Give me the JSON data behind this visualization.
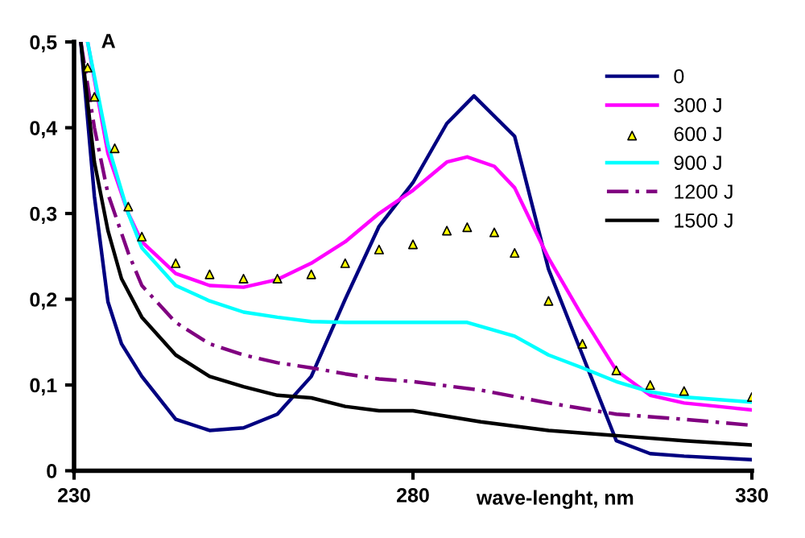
{
  "chart_data": {
    "type": "line",
    "xlabel": "wave-lenght, nm",
    "annotations": [
      "A"
    ],
    "xlim": [
      230,
      330
    ],
    "xticks": [
      230,
      280,
      330
    ],
    "ylim": [
      0,
      0.5
    ],
    "yticks": [
      {
        "value": 0,
        "label": "0"
      },
      {
        "value": 0.1,
        "label": "0,1"
      },
      {
        "value": 0.2,
        "label": "0,2"
      },
      {
        "value": 0.3,
        "label": "0,3"
      },
      {
        "value": 0.4,
        "label": "0,4"
      },
      {
        "value": 0.5,
        "label": "0,5"
      }
    ],
    "grid": false,
    "legend": "top right",
    "series": [
      {
        "name": "0",
        "color": "#000080",
        "x": [
          231,
          233,
          235,
          237,
          240,
          245,
          250,
          255,
          260,
          265,
          270,
          275,
          280,
          285,
          289,
          295,
          300,
          305,
          310,
          315,
          320,
          330
        ],
        "values": [
          0.5,
          0.32,
          0.197,
          0.148,
          0.11,
          0.06,
          0.047,
          0.05,
          0.066,
          0.11,
          0.2,
          0.285,
          0.336,
          0.405,
          0.437,
          0.39,
          0.235,
          0.135,
          0.035,
          0.02,
          0.017,
          0.013
        ]
      },
      {
        "name": "300 J",
        "color": "#ff00ff",
        "x": [
          232,
          235,
          238,
          240,
          245,
          250,
          255,
          260,
          265,
          270,
          275,
          280,
          285,
          288,
          292,
          295,
          300,
          305,
          310,
          315,
          320,
          325,
          330
        ],
        "values": [
          0.5,
          0.37,
          0.3,
          0.267,
          0.23,
          0.216,
          0.214,
          0.223,
          0.242,
          0.267,
          0.3,
          0.327,
          0.36,
          0.366,
          0.355,
          0.33,
          0.248,
          0.18,
          0.117,
          0.088,
          0.079,
          0.075,
          0.071
        ]
      },
      {
        "name": "600 J",
        "type": "scatter",
        "marker": "triangle",
        "color": "#ffff00",
        "x": [
          232,
          233,
          236,
          238,
          240,
          245,
          250,
          255,
          260,
          265,
          270,
          275,
          280,
          285,
          288,
          292,
          295,
          300,
          305,
          310,
          315,
          320,
          330
        ],
        "values": [
          0.47,
          0.436,
          0.376,
          0.308,
          0.273,
          0.242,
          0.229,
          0.224,
          0.224,
          0.229,
          0.242,
          0.258,
          0.264,
          0.28,
          0.284,
          0.278,
          0.254,
          0.198,
          0.148,
          0.117,
          0.1,
          0.093,
          0.086
        ]
      },
      {
        "name": "900 J",
        "color": "#00ffff",
        "x": [
          232,
          235,
          238,
          240,
          245,
          250,
          255,
          260,
          265,
          270,
          280,
          288,
          295,
          300,
          305,
          310,
          315,
          320,
          330
        ],
        "values": [
          0.5,
          0.38,
          0.3,
          0.26,
          0.216,
          0.198,
          0.185,
          0.179,
          0.174,
          0.173,
          0.173,
          0.173,
          0.157,
          0.135,
          0.12,
          0.104,
          0.092,
          0.086,
          0.08
        ]
      },
      {
        "name": "1200 J",
        "color": "#800080",
        "line_style": "dashed",
        "x": [
          231,
          233,
          235,
          238,
          240,
          245,
          250,
          255,
          260,
          265,
          270,
          275,
          280,
          290,
          300,
          310,
          320,
          330
        ],
        "values": [
          0.5,
          0.4,
          0.323,
          0.254,
          0.216,
          0.173,
          0.148,
          0.135,
          0.126,
          0.12,
          0.113,
          0.107,
          0.104,
          0.094,
          0.079,
          0.066,
          0.06,
          0.053
        ]
      },
      {
        "name": "1500 J",
        "color": "#000000",
        "x": [
          231,
          233,
          235,
          237,
          240,
          245,
          250,
          255,
          260,
          265,
          270,
          275,
          280,
          290,
          300,
          310,
          320,
          330
        ],
        "values": [
          0.5,
          0.36,
          0.28,
          0.224,
          0.179,
          0.135,
          0.11,
          0.098,
          0.088,
          0.085,
          0.075,
          0.07,
          0.07,
          0.057,
          0.047,
          0.041,
          0.035,
          0.03
        ]
      }
    ]
  }
}
